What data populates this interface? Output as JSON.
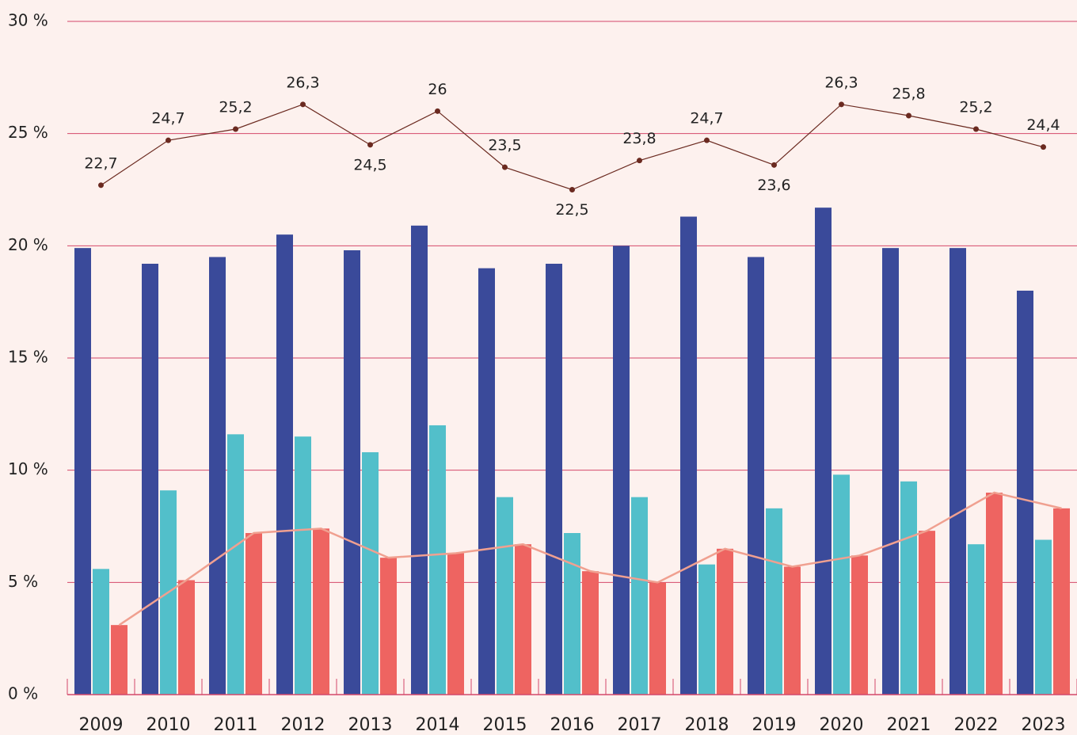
{
  "chart_data": {
    "type": "bar",
    "categories": [
      "2009",
      "2010",
      "2011",
      "2012",
      "2013",
      "2014",
      "2015",
      "2016",
      "2017",
      "2018",
      "2019",
      "2020",
      "2021",
      "2022",
      "2023"
    ],
    "series": [
      {
        "color": "#3a4a9a",
        "values": [
          19.9,
          19.2,
          19.5,
          20.5,
          19.8,
          20.9,
          19.0,
          19.2,
          20.0,
          21.3,
          19.5,
          21.7,
          19.9,
          19.9,
          18.0
        ]
      },
      {
        "color": "#52bfca",
        "values": [
          5.6,
          9.1,
          11.6,
          11.5,
          10.8,
          12.0,
          8.8,
          7.2,
          8.8,
          5.8,
          8.3,
          9.8,
          9.5,
          6.7,
          6.9
        ]
      },
      {
        "color": "#ee6461",
        "line_color": "#f0a090",
        "values": [
          3.1,
          5.1,
          7.2,
          7.4,
          6.1,
          6.3,
          6.7,
          5.5,
          5.0,
          6.5,
          5.7,
          6.2,
          7.3,
          9.0,
          8.3
        ]
      }
    ],
    "line": {
      "color": "#6b2a20",
      "values": [
        22.7,
        24.7,
        25.2,
        26.3,
        24.5,
        26,
        23.5,
        22.5,
        23.8,
        24.7,
        23.6,
        26.3,
        25.8,
        25.2,
        24.4
      ],
      "value_labels": [
        "22,7",
        "24,7",
        "25,2",
        "26,3",
        "24,5",
        "26",
        "23,5",
        "22,5",
        "23,8",
        "24,7",
        "23,6",
        "26,3",
        "25,8",
        "25,2",
        "24,4"
      ]
    },
    "ylim": [
      0,
      30
    ],
    "yticks": [
      {
        "value": 0,
        "label": "0 %"
      },
      {
        "value": 5,
        "label": "5 %"
      },
      {
        "value": 10,
        "label": "10 %"
      },
      {
        "value": 15,
        "label": "15 %"
      },
      {
        "value": 20,
        "label": "20 %"
      },
      {
        "value": 25,
        "label": "25 %"
      },
      {
        "value": 30,
        "label": "30 %"
      }
    ],
    "grid": true
  }
}
